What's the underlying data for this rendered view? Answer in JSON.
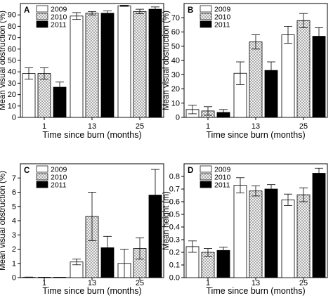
{
  "chart_data": [
    {
      "panel_label": "A",
      "type": "bar",
      "xlabel": "Time since burn (months)",
      "ylabel": "Mean visual obstruction (%)",
      "ylim": [
        0,
        100
      ],
      "yticks": [
        "0",
        "10",
        "20",
        "30",
        "40",
        "50",
        "60",
        "70",
        "80",
        "90"
      ],
      "categories": [
        "1",
        "13",
        "25"
      ],
      "legend_position": "top-left",
      "series": [
        {
          "name": "2009",
          "values": [
            38.5,
            89,
            98
          ],
          "errors": [
            5,
            3,
            0.5
          ]
        },
        {
          "name": "2010",
          "values": [
            38.5,
            91.5,
            93
          ],
          "errors": [
            5,
            1.5,
            2
          ]
        },
        {
          "name": "2011",
          "values": [
            26.5,
            91.5,
            95
          ],
          "errors": [
            4.5,
            2,
            2
          ]
        }
      ]
    },
    {
      "panel_label": "B",
      "type": "bar",
      "xlabel": "Time since burn (months)",
      "ylabel": "Mean visual obstruction (%)",
      "ylim": [
        0,
        80
      ],
      "yticks": [
        "0",
        "10",
        "20",
        "30",
        "40",
        "50",
        "60",
        "70"
      ],
      "categories": [
        "1",
        "13",
        "25"
      ],
      "legend_position": "top-left",
      "series": [
        {
          "name": "2009",
          "values": [
            5.5,
            31,
            58
          ],
          "errors": [
            3,
            8,
            6
          ]
        },
        {
          "name": "2010",
          "values": [
            4.5,
            53,
            68
          ],
          "errors": [
            3,
            5,
            5
          ]
        },
        {
          "name": "2011",
          "values": [
            3.5,
            33,
            57
          ],
          "errors": [
            2,
            6,
            6
          ]
        }
      ]
    },
    {
      "panel_label": "C",
      "type": "bar",
      "xlabel": "Time since burn (months)",
      "ylabel": "Mean visual obstruction (%)",
      "ylim": [
        0,
        8
      ],
      "yticks": [
        "0",
        "1",
        "2",
        "3",
        "4",
        "5",
        "6",
        "7"
      ],
      "categories": [
        "1",
        "13",
        "25"
      ],
      "legend_position": "top-left",
      "series": [
        {
          "name": "2009",
          "values": [
            0.02,
            1.1,
            1.0
          ],
          "errors": [
            0.02,
            0.2,
            1.0
          ]
        },
        {
          "name": "2010",
          "values": [
            0.0,
            4.3,
            2.05
          ],
          "errors": [
            0,
            1.7,
            0.75
          ]
        },
        {
          "name": "2011",
          "values": [
            0.0,
            2.1,
            5.8
          ],
          "errors": [
            0,
            0.8,
            1.8
          ]
        }
      ]
    },
    {
      "panel_label": "D",
      "type": "bar",
      "xlabel": "Time since burn (months)",
      "ylabel": "Mean height (m)",
      "ylim": [
        0,
        0.9
      ],
      "yticks": [
        "0.0",
        "0.1",
        "0.2",
        "0.3",
        "0.4",
        "0.5",
        "0.6",
        "0.7",
        "0.8"
      ],
      "categories": [
        "1",
        "13",
        "25"
      ],
      "legend_position": "top-left",
      "series": [
        {
          "name": "2009",
          "values": [
            0.245,
            0.73,
            0.615
          ],
          "errors": [
            0.045,
            0.06,
            0.045
          ]
        },
        {
          "name": "2010",
          "values": [
            0.2,
            0.685,
            0.655
          ],
          "errors": [
            0.03,
            0.04,
            0.055
          ]
        },
        {
          "name": "2011",
          "values": [
            0.215,
            0.7,
            0.825
          ],
          "errors": [
            0.025,
            0.035,
            0.04
          ]
        }
      ]
    }
  ]
}
